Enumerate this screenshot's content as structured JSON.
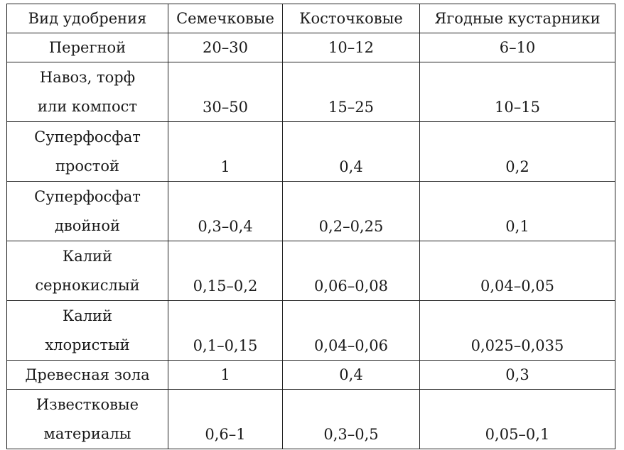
{
  "headers": [
    "Вид удобрения",
    "Семечковые",
    "Косточковые",
    "Ягодные кустарники"
  ],
  "rows": [
    {
      "name": [
        "Перегной"
      ],
      "values": [
        "20–30",
        "10–12",
        "6–10"
      ]
    },
    {
      "name": [
        "Навоз, торф",
        "или компост"
      ],
      "values": [
        "30–50",
        "15–25",
        "10–15"
      ]
    },
    {
      "name": [
        "Суперфосфат",
        "простой"
      ],
      "values": [
        "1",
        "0,4",
        "0,2"
      ]
    },
    {
      "name": [
        "Суперфосфат",
        "двойной"
      ],
      "values": [
        "0,3–0,4",
        "0,2–0,25",
        "0,1"
      ]
    },
    {
      "name": [
        "Калий",
        "сернокислый"
      ],
      "values": [
        "0,15–0,2",
        "0,06–0,08",
        "0,04–0,05"
      ]
    },
    {
      "name": [
        "Калий",
        "хлористый"
      ],
      "values": [
        "0,1–0,15",
        "0,04–0,06",
        "0,025–0,035"
      ]
    },
    {
      "name": [
        "Древесная зола"
      ],
      "values": [
        "1",
        "0,4",
        "0,3"
      ]
    },
    {
      "name": [
        "Известковые",
        "материалы"
      ],
      "values": [
        "0,6–1",
        "0,3–0,5",
        "0,05–0,1"
      ]
    }
  ]
}
